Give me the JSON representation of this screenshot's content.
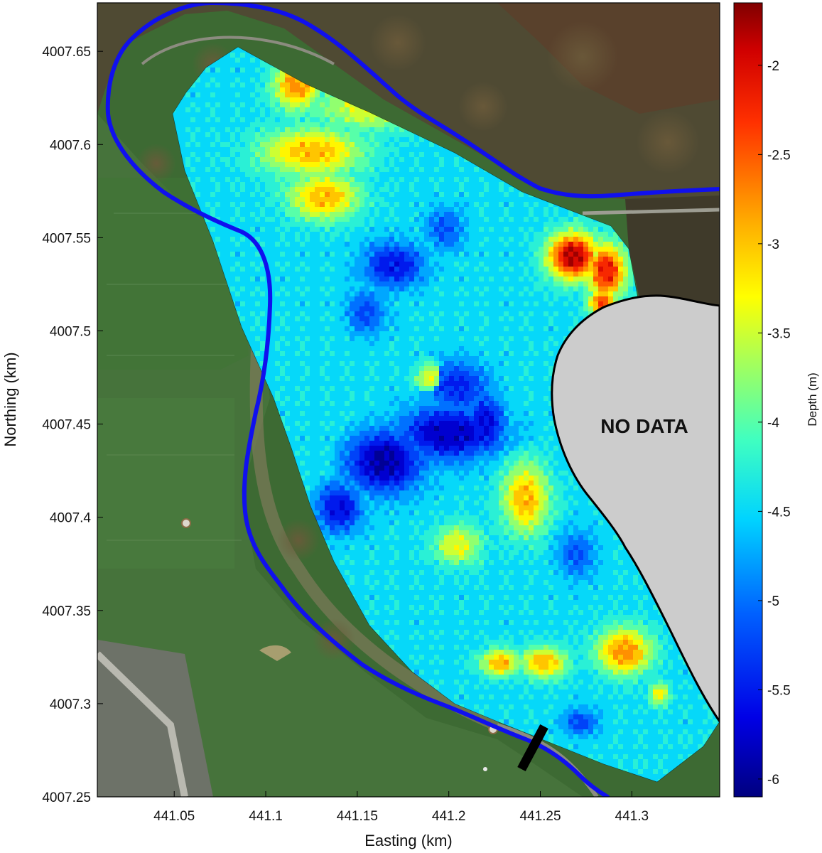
{
  "map": {
    "x_axis": {
      "label": "Easting (km)",
      "ticks": [
        441.05,
        441.1,
        441.15,
        441.2,
        441.25,
        441.3
      ],
      "tick_labels": [
        "441.05",
        "441.1",
        "441.15",
        "441.2",
        "441.25",
        "441.3"
      ],
      "range": [
        441.008,
        441.348
      ]
    },
    "y_axis": {
      "label": "Northing (km)",
      "ticks": [
        4007.25,
        4007.3,
        4007.35,
        4007.4,
        4007.45,
        4007.5,
        4007.55,
        4007.6,
        4007.65
      ],
      "tick_labels": [
        "4007.25",
        "4007.3",
        "4007.35",
        "4007.4",
        "4007.45",
        "4007.5",
        "4007.55",
        "4007.6",
        "4007.65"
      ],
      "range": [
        4007.25,
        4007.676
      ]
    },
    "colorbar": {
      "label": "Depth (m)",
      "range": [
        -6.1,
        -1.65
      ],
      "ticks": [
        -2,
        -2.5,
        -3,
        -3.5,
        -4,
        -4.5,
        -5,
        -5.5,
        -6
      ],
      "tick_labels": [
        "-2",
        "-2.5",
        "-3",
        "-3.5",
        "-4",
        "-4.5",
        "-5",
        "-5.5",
        "-6"
      ]
    },
    "no_data_label": "NO DATA",
    "colors": {
      "river_boundary": "#1010ee",
      "no_data_fill": "#cccccc",
      "contour_line": "#000000",
      "aerial_forest": "#4f4a33",
      "aerial_field": "#3d6a33"
    },
    "depth_anomalies": [
      {
        "x": 441.117,
        "y": 4007.632,
        "depth": -2.8,
        "sx": 0.012,
        "sy": 0.013
      },
      {
        "x": 441.125,
        "y": 4007.596,
        "depth": -3.0,
        "sx": 0.026,
        "sy": 0.012
      },
      {
        "x": 441.132,
        "y": 4007.572,
        "depth": -3.0,
        "sx": 0.018,
        "sy": 0.012
      },
      {
        "x": 441.158,
        "y": 4007.62,
        "depth": -3.45,
        "sx": 0.03,
        "sy": 0.012
      },
      {
        "x": 441.268,
        "y": 4007.54,
        "depth": -1.85,
        "sx": 0.013,
        "sy": 0.012
      },
      {
        "x": 441.286,
        "y": 4007.532,
        "depth": -2.2,
        "sx": 0.01,
        "sy": 0.014
      },
      {
        "x": 441.284,
        "y": 4007.515,
        "depth": -2.5,
        "sx": 0.007,
        "sy": 0.008
      },
      {
        "x": 441.17,
        "y": 4007.535,
        "depth": -5.5,
        "sx": 0.016,
        "sy": 0.012
      },
      {
        "x": 441.155,
        "y": 4007.51,
        "depth": -5.2,
        "sx": 0.01,
        "sy": 0.012
      },
      {
        "x": 441.198,
        "y": 4007.555,
        "depth": -5.1,
        "sx": 0.01,
        "sy": 0.012
      },
      {
        "x": 441.205,
        "y": 4007.47,
        "depth": -5.4,
        "sx": 0.016,
        "sy": 0.013
      },
      {
        "x": 441.2,
        "y": 4007.445,
        "depth": -5.8,
        "sx": 0.026,
        "sy": 0.014
      },
      {
        "x": 441.165,
        "y": 4007.43,
        "depth": -5.9,
        "sx": 0.02,
        "sy": 0.016
      },
      {
        "x": 441.14,
        "y": 4007.405,
        "depth": -5.6,
        "sx": 0.012,
        "sy": 0.013
      },
      {
        "x": 441.22,
        "y": 4007.45,
        "depth": -5.6,
        "sx": 0.01,
        "sy": 0.016
      },
      {
        "x": 441.27,
        "y": 4007.38,
        "depth": -5.1,
        "sx": 0.01,
        "sy": 0.012
      },
      {
        "x": 441.272,
        "y": 4007.29,
        "depth": -5.2,
        "sx": 0.009,
        "sy": 0.007
      },
      {
        "x": 441.19,
        "y": 4007.475,
        "depth": -3.45,
        "sx": 0.008,
        "sy": 0.007
      },
      {
        "x": 441.242,
        "y": 4007.41,
        "depth": -3.0,
        "sx": 0.012,
        "sy": 0.018
      },
      {
        "x": 441.205,
        "y": 4007.385,
        "depth": -3.4,
        "sx": 0.012,
        "sy": 0.01
      },
      {
        "x": 441.228,
        "y": 4007.322,
        "depth": -3.0,
        "sx": 0.01,
        "sy": 0.007
      },
      {
        "x": 441.252,
        "y": 4007.322,
        "depth": -3.0,
        "sx": 0.012,
        "sy": 0.008
      },
      {
        "x": 441.296,
        "y": 4007.328,
        "depth": -2.8,
        "sx": 0.014,
        "sy": 0.012
      },
      {
        "x": 441.315,
        "y": 4007.305,
        "depth": -3.3,
        "sx": 0.005,
        "sy": 0.006
      },
      {
        "x": 441.095,
        "y": 4007.455,
        "depth": -4.45,
        "sx": 0.03,
        "sy": 0.04
      }
    ]
  }
}
